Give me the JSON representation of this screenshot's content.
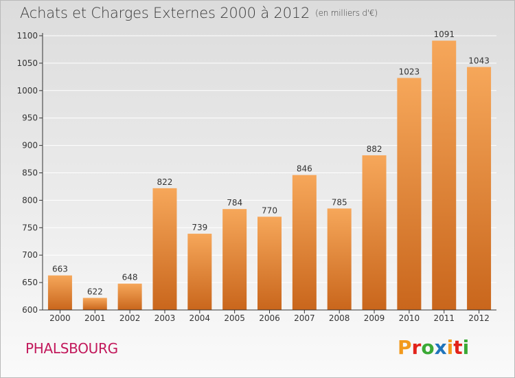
{
  "header": {
    "title": "Achats et Charges Externes 2000 à 2012",
    "subtitle": "(en milliers d'€)"
  },
  "footer": {
    "commune": "PHALSBOURG",
    "logo_text": "Proxiti",
    "logo_colors": [
      "#f29a1d",
      "#e2231a",
      "#3aa935",
      "#1f74bb",
      "#f29a1d",
      "#e2231a",
      "#3aa935"
    ]
  },
  "colors": {
    "bar_top": "#f6a75a",
    "bar_bottom": "#c9661c",
    "axis": "#333333",
    "grid": "#ffffff"
  },
  "chart_data": {
    "type": "bar",
    "title": "Achats et Charges Externes 2000 à 2012",
    "subtitle": "(en milliers d'€)",
    "categories": [
      "2000",
      "2001",
      "2002",
      "2003",
      "2004",
      "2005",
      "2006",
      "2007",
      "2008",
      "2009",
      "2010",
      "2011",
      "2012"
    ],
    "values": [
      663,
      622,
      648,
      822,
      739,
      784,
      770,
      846,
      785,
      882,
      1023,
      1091,
      1043
    ],
    "xlabel": "",
    "ylabel": "",
    "ylim": [
      600,
      1100
    ],
    "yticks": [
      600,
      650,
      700,
      750,
      800,
      850,
      900,
      950,
      1000,
      1050,
      1100
    ],
    "grid": true,
    "data_labels": true
  }
}
